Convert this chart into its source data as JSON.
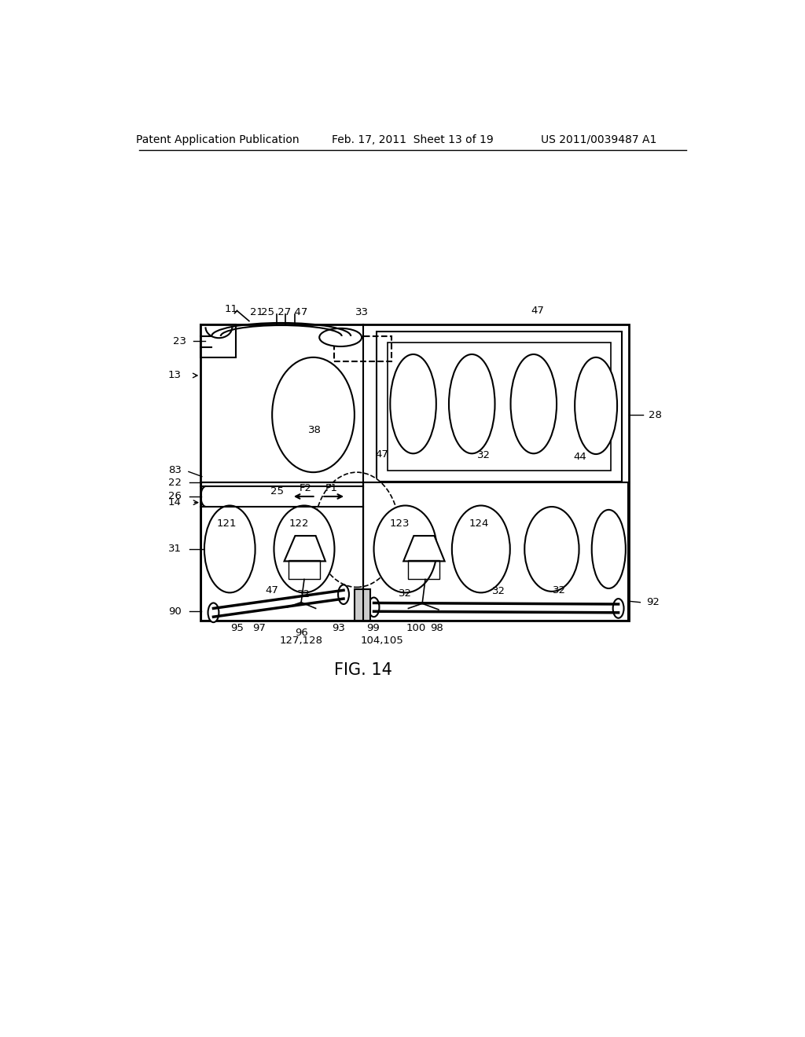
{
  "bg_color": "#ffffff",
  "line_color": "#000000",
  "header_left": "Patent Application Publication",
  "header_mid": "Feb. 17, 2011  Sheet 13 of 19",
  "header_right": "US 2011/0039487 A1",
  "fig_label": "FIG. 14"
}
